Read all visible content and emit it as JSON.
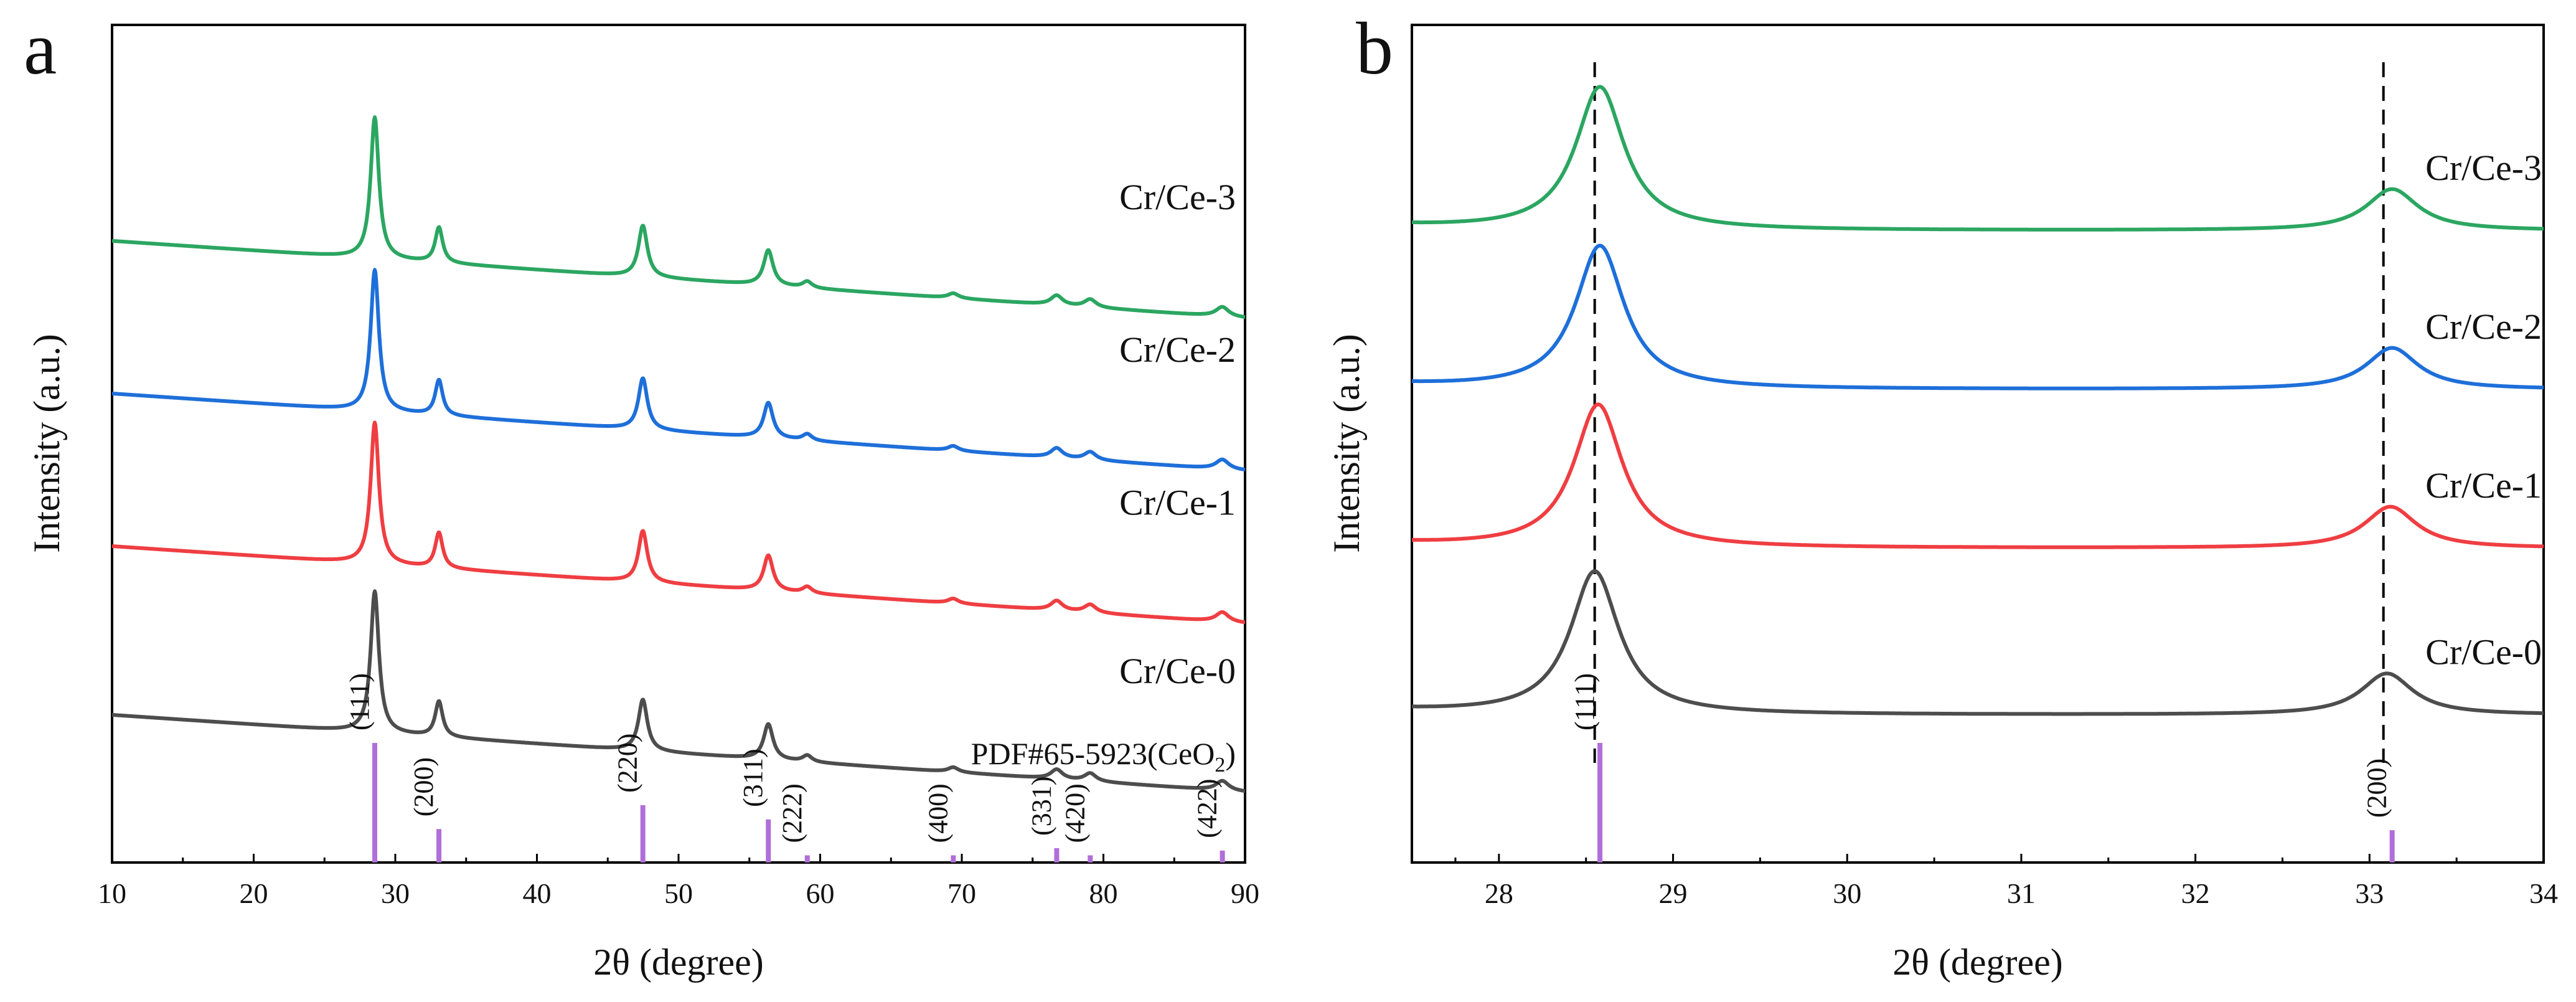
{
  "figure": {
    "panels": [
      {
        "letter": "a"
      },
      {
        "letter": "b"
      }
    ]
  },
  "colors": {
    "Cr/Ce-0": "#4d4d4d",
    "Cr/Ce-1": "#ef3e42",
    "Cr/Ce-2": "#1e6fd9",
    "Cr/Ce-3": "#2ba661",
    "reference": "#b06fd8",
    "axis": "#000000"
  },
  "chart_data": [
    {
      "type": "line",
      "panel": "a",
      "xlabel": "2θ (degree)",
      "ylabel": "Intensity (a.u.)",
      "xlim": [
        10,
        90
      ],
      "xticks": [
        10,
        20,
        30,
        40,
        50,
        60,
        70,
        80,
        90
      ],
      "yticks": [],
      "series_order": [
        "Cr/Ce-0",
        "Cr/Ce-1",
        "Cr/Ce-2",
        "Cr/Ce-3"
      ],
      "series_offsets": [
        0,
        1.05,
        2.0,
        2.95
      ],
      "baseline_slope": -0.006,
      "peaks": [
        {
          "pos": 28.55,
          "height": 0.88,
          "width": 0.35
        },
        {
          "pos": 33.08,
          "height": 0.22,
          "width": 0.32
        },
        {
          "pos": 47.48,
          "height": 0.32,
          "width": 0.38
        },
        {
          "pos": 56.34,
          "height": 0.22,
          "width": 0.4
        },
        {
          "pos": 59.09,
          "height": 0.04,
          "width": 0.4
        },
        {
          "pos": 69.4,
          "height": 0.03,
          "width": 0.45
        },
        {
          "pos": 76.7,
          "height": 0.06,
          "width": 0.5
        },
        {
          "pos": 79.07,
          "height": 0.05,
          "width": 0.5
        },
        {
          "pos": 88.4,
          "height": 0.06,
          "width": 0.55
        }
      ],
      "reference": {
        "name": "PDF#65-5923(CeO2)",
        "name_main": "PDF#65-5923(CeO",
        "name_sub": "2",
        "name_end": ")",
        "lines": [
          {
            "pos": 28.55,
            "hkl": "(111)",
            "rel": 1.0
          },
          {
            "pos": 33.08,
            "hkl": "(200)",
            "rel": 0.28
          },
          {
            "pos": 47.48,
            "hkl": "(220)",
            "rel": 0.48
          },
          {
            "pos": 56.34,
            "hkl": "(311)",
            "rel": 0.36
          },
          {
            "pos": 59.09,
            "hkl": "(222)",
            "rel": 0.06
          },
          {
            "pos": 69.4,
            "hkl": "(400)",
            "rel": 0.06
          },
          {
            "pos": 76.7,
            "hkl": "(331)",
            "rel": 0.12
          },
          {
            "pos": 79.07,
            "hkl": "(420)",
            "rel": 0.06
          },
          {
            "pos": 88.4,
            "hkl": "(422)",
            "rel": 0.1
          }
        ]
      }
    },
    {
      "type": "line",
      "panel": "b",
      "xlabel": "2θ (degree)",
      "ylabel": "Intensity (a.u.)",
      "xlim": [
        27.5,
        34
      ],
      "xticks": [
        28,
        29,
        30,
        31,
        32,
        33,
        34
      ],
      "yticks": [],
      "series_order": [
        "Cr/Ce-0",
        "Cr/Ce-1",
        "Cr/Ce-2",
        "Cr/Ce-3"
      ],
      "series_offsets": [
        0,
        1.05,
        2.05,
        3.05
      ],
      "baseline_start": 0.03,
      "peaks": [
        {
          "pos": 28.55,
          "height": 0.9,
          "width": 0.17
        },
        {
          "pos": 33.1,
          "height": 0.26,
          "width": 0.18
        }
      ],
      "series_shift": {
        "Cr/Ce-0": 0.0,
        "Cr/Ce-1": 0.02,
        "Cr/Ce-2": 0.03,
        "Cr/Ce-3": 0.03
      },
      "dashed_lines": [
        28.55,
        33.08
      ],
      "reference": {
        "lines": [
          {
            "pos": 28.58,
            "hkl": "(111)",
            "rel": 1.0
          },
          {
            "pos": 33.13,
            "hkl": "(200)",
            "rel": 0.27
          }
        ]
      }
    }
  ]
}
